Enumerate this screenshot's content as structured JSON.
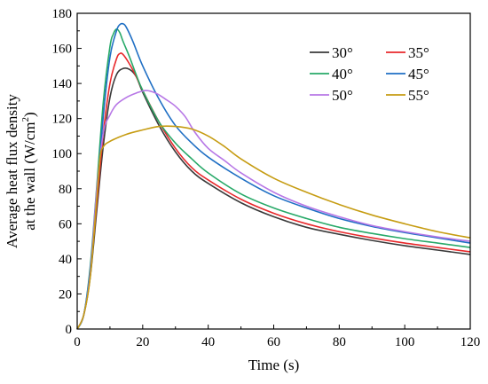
{
  "chart_data": {
    "type": "line",
    "xlabel": "Time (s)",
    "ylabel_line1": "Average heat flux density",
    "ylabel_line2_prefix": "at the wall (W/cm",
    "ylabel_line2_sup": "2",
    "ylabel_line2_suffix": ")",
    "xlim": [
      0,
      120
    ],
    "ylim": [
      0,
      180
    ],
    "xticks": [
      0,
      20,
      40,
      60,
      80,
      100,
      120
    ],
    "yticks": [
      0,
      20,
      40,
      60,
      80,
      100,
      120,
      140,
      160,
      180
    ],
    "xtick_labels": [
      "0",
      "20",
      "40",
      "60",
      "80",
      "100",
      "120"
    ],
    "ytick_labels": [
      "0",
      "20",
      "40",
      "60",
      "80",
      "100",
      "120",
      "140",
      "160",
      "180"
    ],
    "legend_placement": "top-right",
    "grid": false,
    "series": [
      {
        "name": "30°",
        "color": "#3a3a3a",
        "points": [
          [
            0,
            0
          ],
          [
            2,
            8
          ],
          [
            4,
            30
          ],
          [
            6,
            68
          ],
          [
            8,
            105
          ],
          [
            10,
            132
          ],
          [
            12,
            145
          ],
          [
            14,
            148.5
          ],
          [
            16,
            148
          ],
          [
            18,
            144
          ],
          [
            20,
            135
          ],
          [
            25,
            116
          ],
          [
            30,
            101
          ],
          [
            35,
            90
          ],
          [
            40,
            83
          ],
          [
            50,
            72
          ],
          [
            60,
            64
          ],
          [
            70,
            58
          ],
          [
            80,
            54
          ],
          [
            90,
            50.5
          ],
          [
            100,
            47.5
          ],
          [
            110,
            45
          ],
          [
            120,
            42.5
          ]
        ]
      },
      {
        "name": "35°",
        "color": "#e8282b",
        "points": [
          [
            0,
            0
          ],
          [
            2,
            8
          ],
          [
            4,
            32
          ],
          [
            6,
            72
          ],
          [
            8,
            112
          ],
          [
            10,
            140
          ],
          [
            12,
            154
          ],
          [
            13,
            157
          ],
          [
            14,
            156.5
          ],
          [
            16,
            151
          ],
          [
            18,
            144
          ],
          [
            20,
            136
          ],
          [
            25,
            118
          ],
          [
            30,
            103
          ],
          [
            35,
            92
          ],
          [
            40,
            85
          ],
          [
            50,
            74
          ],
          [
            60,
            66
          ],
          [
            70,
            60
          ],
          [
            80,
            55.5
          ],
          [
            90,
            52
          ],
          [
            100,
            49
          ],
          [
            110,
            46.5
          ],
          [
            120,
            44
          ]
        ]
      },
      {
        "name": "40°",
        "color": "#27a968",
        "points": [
          [
            0,
            0
          ],
          [
            2,
            8
          ],
          [
            4,
            36
          ],
          [
            6,
            82
          ],
          [
            8,
            130
          ],
          [
            10,
            161
          ],
          [
            11,
            168
          ],
          [
            12,
            171
          ],
          [
            13,
            169
          ],
          [
            14,
            164
          ],
          [
            16,
            155
          ],
          [
            18,
            145
          ],
          [
            20,
            136
          ],
          [
            25,
            118
          ],
          [
            30,
            106
          ],
          [
            35,
            97
          ],
          [
            40,
            89
          ],
          [
            50,
            77
          ],
          [
            60,
            69
          ],
          [
            70,
            63
          ],
          [
            80,
            58
          ],
          [
            90,
            54.5
          ],
          [
            100,
            51.5
          ],
          [
            110,
            49
          ],
          [
            120,
            46.5
          ]
        ]
      },
      {
        "name": "45°",
        "color": "#1f6fc4",
        "points": [
          [
            0,
            0
          ],
          [
            2,
            8
          ],
          [
            4,
            34
          ],
          [
            6,
            76
          ],
          [
            8,
            122
          ],
          [
            10,
            155
          ],
          [
            12,
            170
          ],
          [
            13,
            173.5
          ],
          [
            14,
            174
          ],
          [
            15,
            172
          ],
          [
            17,
            164
          ],
          [
            20,
            150
          ],
          [
            25,
            131
          ],
          [
            30,
            116
          ],
          [
            35,
            106
          ],
          [
            40,
            98
          ],
          [
            50,
            86
          ],
          [
            60,
            76
          ],
          [
            70,
            69
          ],
          [
            80,
            63
          ],
          [
            90,
            58.5
          ],
          [
            100,
            55
          ],
          [
            110,
            52
          ],
          [
            120,
            49
          ]
        ]
      },
      {
        "name": "50°",
        "color": "#b777e6",
        "points": [
          [
            0,
            0
          ],
          [
            2,
            8
          ],
          [
            4,
            32
          ],
          [
            6,
            80
          ],
          [
            8,
            112
          ],
          [
            10,
            122
          ],
          [
            12,
            128
          ],
          [
            15,
            132
          ],
          [
            18,
            134.5
          ],
          [
            21,
            136
          ],
          [
            24,
            134.5
          ],
          [
            27,
            131
          ],
          [
            30,
            127
          ],
          [
            33,
            121
          ],
          [
            36,
            112
          ],
          [
            40,
            103
          ],
          [
            45,
            96
          ],
          [
            50,
            89
          ],
          [
            60,
            78
          ],
          [
            70,
            70
          ],
          [
            80,
            64
          ],
          [
            90,
            59
          ],
          [
            100,
            55.5
          ],
          [
            110,
            52.5
          ],
          [
            120,
            50
          ]
        ]
      },
      {
        "name": "55°",
        "color": "#c69c12",
        "points": [
          [
            0,
            0
          ],
          [
            2,
            8
          ],
          [
            4,
            30
          ],
          [
            6,
            75
          ],
          [
            7,
            98
          ],
          [
            8,
            104
          ],
          [
            10,
            107
          ],
          [
            15,
            111
          ],
          [
            20,
            113.5
          ],
          [
            25,
            115.5
          ],
          [
            30,
            115.5
          ],
          [
            35,
            114
          ],
          [
            40,
            110
          ],
          [
            45,
            104
          ],
          [
            50,
            97
          ],
          [
            60,
            86
          ],
          [
            70,
            78
          ],
          [
            80,
            71
          ],
          [
            90,
            65
          ],
          [
            100,
            60
          ],
          [
            110,
            55.5
          ],
          [
            120,
            52
          ]
        ]
      }
    ]
  }
}
